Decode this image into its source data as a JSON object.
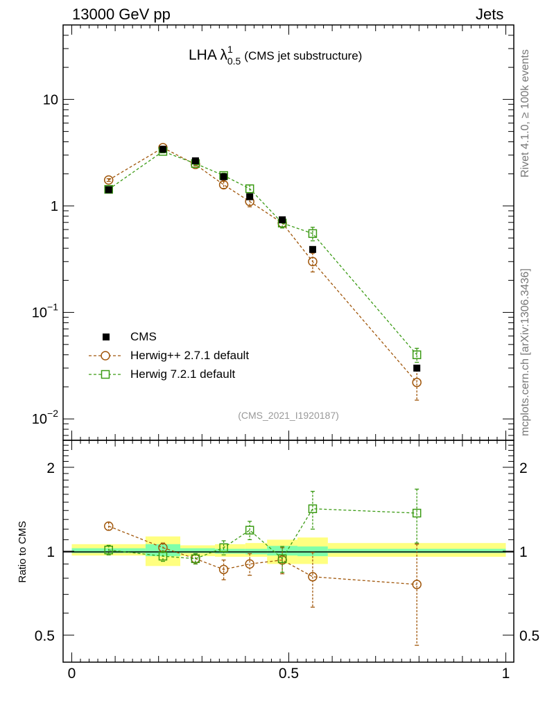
{
  "header": {
    "left": "13000 GeV pp",
    "right": "Jets"
  },
  "side_labels": {
    "rivet": "Rivet 4.1.0, ≥ 100k events",
    "mcplots": "mcplots.cern.ch [arXiv:1306.3436]"
  },
  "chart_data": {
    "type": "scatter",
    "title_main": "LHA λ",
    "title_sup": "1",
    "title_sub": "0.5",
    "title_note": "(CMS jet substructure)",
    "analysis_tag": "(CMS_2021_I1920187)",
    "xlim": [
      0,
      1
    ],
    "top_panel": {
      "yscale": "log",
      "ylim": [
        0.0063,
        50
      ],
      "y_ticks": [
        {
          "value": 10,
          "label": "10"
        },
        {
          "value": 1,
          "label": "1"
        },
        {
          "value": 0.1,
          "label": "10",
          "exp": "−1"
        },
        {
          "value": 0.01,
          "label": "10",
          "exp": "−2"
        }
      ]
    },
    "ratio_panel": {
      "ylabel": "Ratio to CMS",
      "yscale": "log",
      "ylim": [
        0.4,
        2.5
      ],
      "y_ticks": [
        {
          "value": 2,
          "label": "2"
        },
        {
          "value": 1,
          "label": "1"
        },
        {
          "value": 0.5,
          "label": "0.5"
        }
      ],
      "band_edges": [
        0,
        0.17,
        0.25,
        0.33,
        0.4,
        0.45,
        0.52,
        0.59,
        1.0
      ],
      "band_yellow": [
        [
          0.965,
          1.06
        ],
        [
          0.885,
          1.13
        ],
        [
          0.96,
          1.05
        ],
        [
          0.955,
          1.06
        ],
        [
          0.955,
          1.07
        ],
        [
          0.9,
          1.1
        ],
        [
          0.9,
          1.12
        ],
        [
          0.955,
          1.07
        ]
      ],
      "band_green": [
        [
          0.985,
          1.025
        ],
        [
          0.96,
          1.06
        ],
        [
          0.985,
          1.025
        ],
        [
          0.98,
          1.02
        ],
        [
          0.975,
          1.02
        ],
        [
          0.965,
          1.045
        ],
        [
          0.96,
          1.04
        ],
        [
          0.985,
          1.02
        ]
      ]
    },
    "x_ticks": [
      {
        "value": 0,
        "label": "0"
      },
      {
        "value": 0.5,
        "label": "0.5"
      },
      {
        "value": 1,
        "label": "1"
      }
    ],
    "series": [
      {
        "name": "CMS",
        "legend": "CMS",
        "color": "#000000",
        "marker": "filled-square",
        "x": [
          0.085,
          0.21,
          0.285,
          0.35,
          0.41,
          0.485,
          0.555,
          0.795
        ],
        "y": [
          1.42,
          3.4,
          2.65,
          1.88,
          1.22,
          0.74,
          0.39,
          0.03
        ],
        "ratio": [
          1,
          1,
          1,
          1,
          1,
          1,
          1,
          1
        ]
      },
      {
        "name": "Herwig++ 2.7.1 default",
        "legend": "Herwig++ 2.7.1 default",
        "color": "#a0560a",
        "marker": "open-circle",
        "x": [
          0.085,
          0.21,
          0.285,
          0.35,
          0.41,
          0.485,
          0.555,
          0.795
        ],
        "y": [
          1.75,
          3.52,
          2.45,
          1.58,
          1.1,
          0.69,
          0.3,
          0.022
        ],
        "y_err": [
          0.05,
          0.12,
          0.07,
          0.12,
          0.12,
          0.07,
          0.06,
          0.007
        ],
        "ratio": [
          1.23,
          1.03,
          0.94,
          0.86,
          0.9,
          0.93,
          0.81,
          0.76
        ],
        "ratio_err": [
          0.04,
          0.04,
          0.04,
          0.07,
          0.08,
          0.1,
          0.18,
          0.3
        ]
      },
      {
        "name": "Herwig 7.2.1 default",
        "legend": "Herwig 7.2.1 default",
        "color": "#3a9a13",
        "marker": "open-square",
        "x": [
          0.085,
          0.21,
          0.285,
          0.35,
          0.41,
          0.485,
          0.555,
          0.795
        ],
        "y": [
          1.43,
          3.25,
          2.5,
          1.93,
          1.45,
          0.69,
          0.55,
          0.04
        ],
        "y_err": [
          0.05,
          0.1,
          0.07,
          0.1,
          0.12,
          0.07,
          0.08,
          0.006
        ],
        "ratio": [
          1.01,
          0.96,
          0.94,
          1.03,
          1.19,
          0.94,
          1.42,
          1.37
        ],
        "ratio_err": [
          0.04,
          0.04,
          0.04,
          0.06,
          0.09,
          0.1,
          0.22,
          0.3
        ]
      }
    ]
  }
}
